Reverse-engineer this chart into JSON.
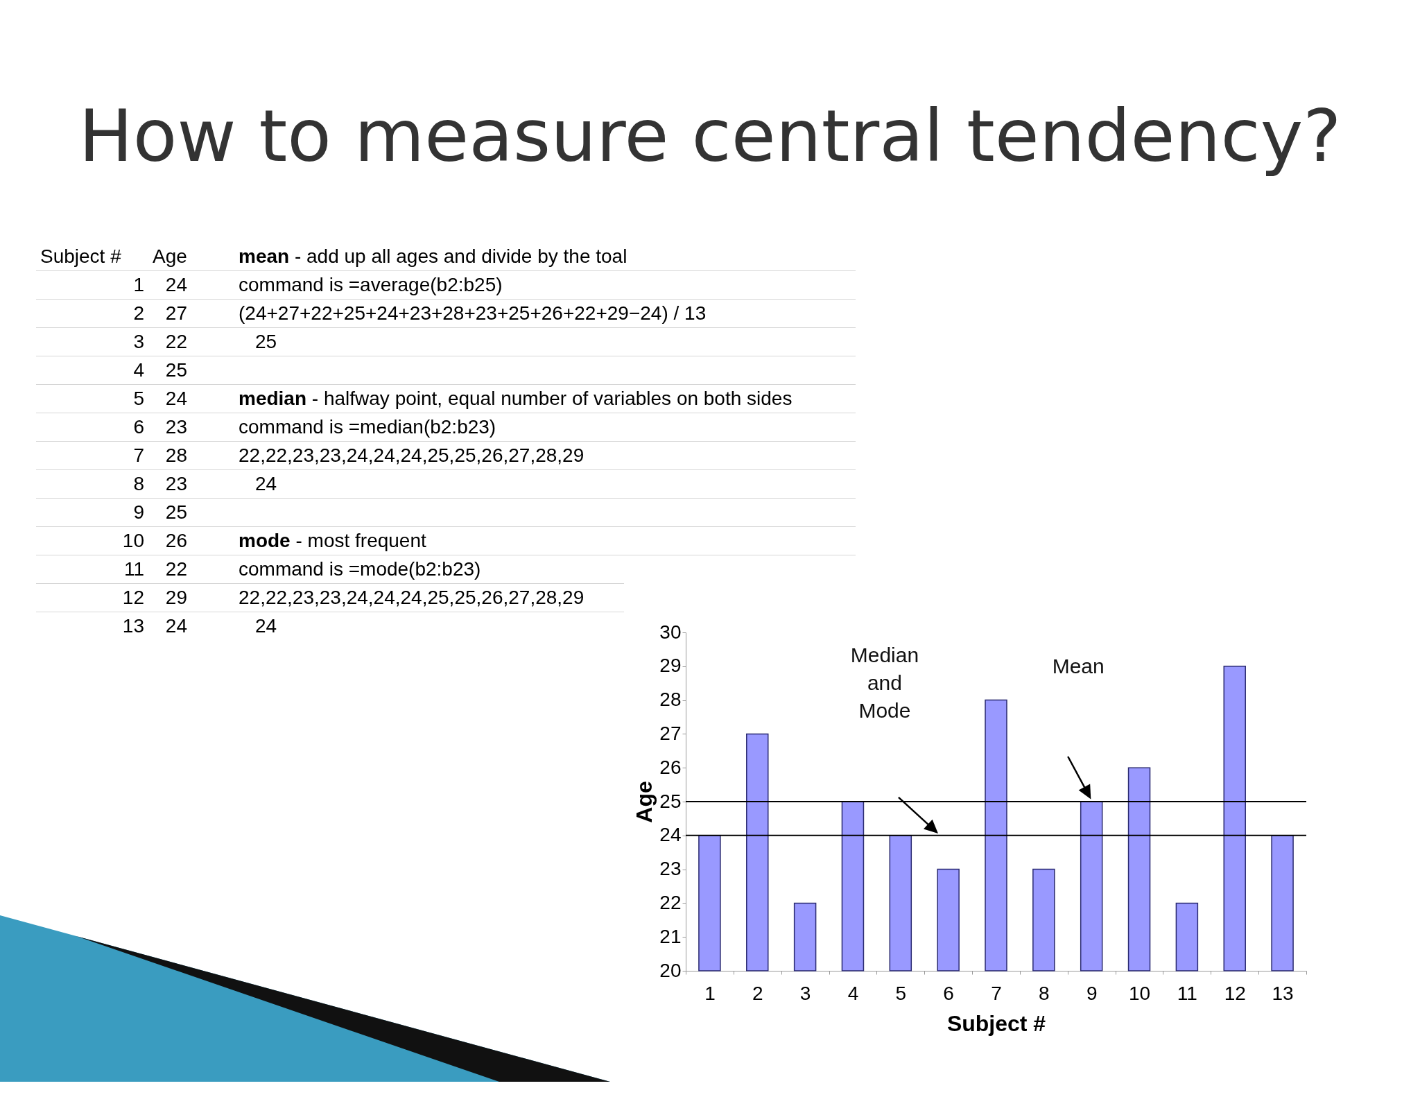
{
  "chart_data": {
    "type": "bar",
    "title": "How to measure central tendency?",
    "xlabel": "Subject #",
    "ylabel": "Age",
    "categories": [
      "1",
      "2",
      "3",
      "4",
      "5",
      "6",
      "7",
      "8",
      "9",
      "10",
      "11",
      "12",
      "13"
    ],
    "series": [
      {
        "color": "#9999ff",
        "values": [
          24,
          27,
          22,
          25,
          24,
          23,
          28,
          23,
          25,
          26,
          22,
          29,
          24
        ]
      }
    ],
    "ylim": [
      20,
      30
    ],
    "yticks": [
      20,
      21,
      22,
      23,
      24,
      25,
      26,
      27,
      28,
      29,
      30
    ],
    "grid": false,
    "ref_lines": [
      {
        "axis": "y",
        "value": 25,
        "color": "#000000"
      },
      {
        "axis": "y",
        "value": 24,
        "color": "#000000"
      }
    ],
    "annotations": [
      "24",
      "27",
      "22",
      "25",
      "24",
      "23",
      "28",
      "23",
      "25",
      "26",
      "22",
      "29",
      "24",
      "mean - add up all ages and divide by the toal",
      "command is =average(b2:b25)",
      "(24+27+22+25+24+23+28+23+25+26+22+29−24) / 13",
      "25",
      "median - halfway point, equal number of variables on both sides",
      "command is =median(b2:b23)",
      "22,22,23,23,24,24,24,25,25,26,27,28,29",
      "24",
      "mode - most frequent",
      "command is =mode(b2:b23)",
      "22,22,23,23,24,24,24,25,25,26,27,28,29",
      "24",
      "Median and Mode",
      "Mean"
    ]
  }
}
